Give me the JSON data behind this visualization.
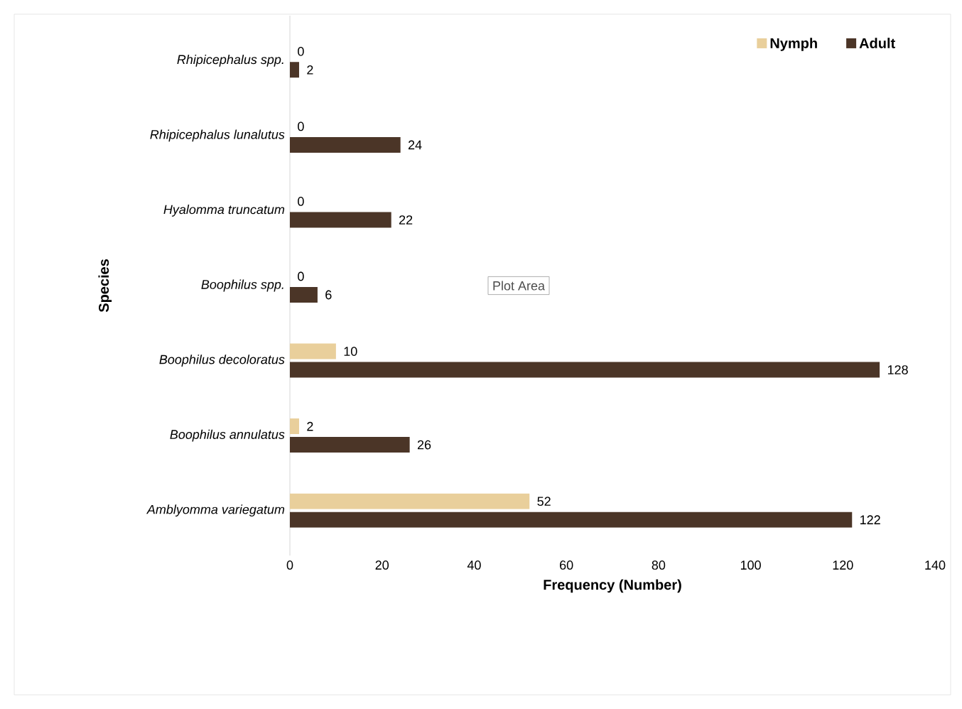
{
  "chart_data": {
    "type": "bar",
    "orientation": "horizontal",
    "xlabel": "Frequency (Number)",
    "ylabel": "Species",
    "categories": [
      "Rhipicephalus spp.",
      "Rhipicephalus lunalutus",
      "Hyalomma truncatum",
      "Boophilus spp.",
      "Boophilus decoloratus",
      "Boophilus annulatus",
      "Amblyomma variegatum"
    ],
    "series": [
      {
        "name": "Nymph",
        "color": "#e9cf9b",
        "values": [
          0,
          0,
          0,
          0,
          10,
          2,
          52
        ]
      },
      {
        "name": "Adult",
        "color": "#4b3527",
        "values": [
          2,
          24,
          22,
          6,
          128,
          26,
          122
        ]
      }
    ],
    "xlim": [
      0,
      140
    ],
    "xticks": [
      0,
      20,
      40,
      60,
      80,
      100,
      120,
      140
    ],
    "data_labels": true,
    "legend": "top right",
    "grid": false,
    "annotations": [
      "Plot Area"
    ]
  }
}
